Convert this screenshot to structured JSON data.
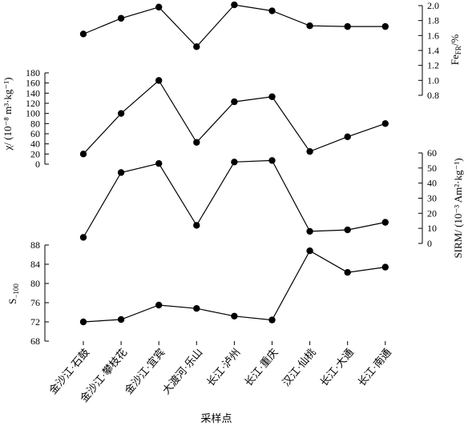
{
  "chart_data": {
    "type": "line",
    "categories": [
      "金沙江·石鼓",
      "金沙江·攀枝花",
      "金沙江·宜宾",
      "大渡河·乐山",
      "长江·泸州",
      "长江·重庆",
      "汉江·仙桃",
      "长江·大通",
      "长江·南通"
    ],
    "xlabel": "采样点",
    "grid": false,
    "legend": "none",
    "marker_color": "#000000",
    "panels": [
      {
        "name": "Fe_FR",
        "ylabel_main": "Fe",
        "ylabel_sub": "FR",
        "ylabel_unit": "/%",
        "axis_side": "right",
        "ylim": [
          0.8,
          2.0
        ],
        "ticks": [
          "0.8",
          "1.0",
          "1.2",
          "1.4",
          "1.6",
          "1.8",
          "2.0"
        ],
        "values": [
          1.62,
          1.83,
          1.98,
          1.45,
          2.01,
          1.93,
          1.73,
          1.72,
          1.72
        ]
      },
      {
        "name": "chi",
        "ylabel": "χ/ (10⁻⁸ m³·kg⁻¹)",
        "axis_side": "left",
        "ylim": [
          0,
          180
        ],
        "ticks": [
          "0",
          "20",
          "40",
          "60",
          "80",
          "100",
          "120",
          "140",
          "160",
          "180"
        ],
        "values": [
          20,
          100,
          165,
          43,
          123,
          133,
          25,
          54,
          80
        ]
      },
      {
        "name": "SIRM",
        "ylabel": "SIRM/ (10⁻³ Am²·kg⁻¹)",
        "axis_side": "right",
        "ylim": [
          0,
          60
        ],
        "ticks": [
          "0",
          "10",
          "20",
          "30",
          "40",
          "50",
          "60"
        ],
        "values": [
          4,
          47,
          53,
          12,
          54,
          55,
          8,
          9,
          14
        ]
      },
      {
        "name": "S_-100",
        "ylabel_main": "S",
        "ylabel_sub": "−100",
        "axis_side": "left",
        "ylim": [
          68,
          88
        ],
        "ticks": [
          "68",
          "72",
          "76",
          "80",
          "84",
          "88"
        ],
        "values": [
          72.0,
          72.5,
          75.5,
          74.8,
          73.2,
          72.4,
          86.8,
          82.3,
          83.4
        ]
      }
    ]
  }
}
